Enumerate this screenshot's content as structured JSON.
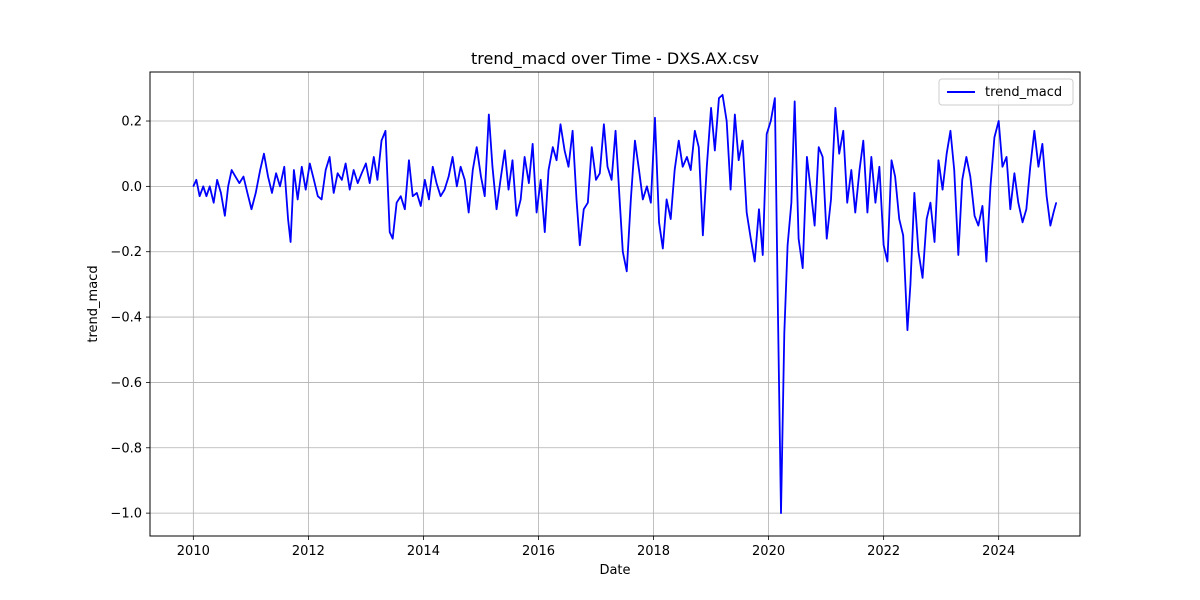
{
  "chart_data": {
    "type": "line",
    "title": "trend_macd over Time - DXS.AX.csv",
    "xlabel": "Date",
    "ylabel": "trend_macd",
    "x_ticks": [
      "2010",
      "2012",
      "2014",
      "2016",
      "2018",
      "2020",
      "2022",
      "2024"
    ],
    "y_ticks": [
      "0.2",
      "0.0",
      "−0.2",
      "−0.4",
      "−0.6",
      "−0.8",
      "−1.0"
    ],
    "xlim": [
      "2009-04-01",
      "2025-06-01"
    ],
    "ylim": [
      -1.07,
      0.35
    ],
    "grid": true,
    "legend_position": "top-right",
    "series": [
      {
        "name": "trend_macd",
        "color": "#0000ff",
        "points": [
          [
            "2010-01-01",
            0.0
          ],
          [
            "2010-01-20",
            0.02
          ],
          [
            "2010-02-10",
            -0.03
          ],
          [
            "2010-03-05",
            0.0
          ],
          [
            "2010-03-25",
            -0.03
          ],
          [
            "2010-04-15",
            0.0
          ],
          [
            "2010-05-10",
            -0.05
          ],
          [
            "2010-06-01",
            0.02
          ],
          [
            "2010-06-25",
            -0.02
          ],
          [
            "2010-07-20",
            -0.09
          ],
          [
            "2010-08-10",
            0.0
          ],
          [
            "2010-09-01",
            0.05
          ],
          [
            "2010-09-25",
            0.03
          ],
          [
            "2010-10-20",
            0.01
          ],
          [
            "2010-11-15",
            0.03
          ],
          [
            "2010-12-10",
            -0.02
          ],
          [
            "2011-01-05",
            -0.07
          ],
          [
            "2011-02-01",
            -0.02
          ],
          [
            "2011-03-01",
            0.05
          ],
          [
            "2011-03-25",
            0.1
          ],
          [
            "2011-04-20",
            0.03
          ],
          [
            "2011-05-15",
            -0.02
          ],
          [
            "2011-06-10",
            0.04
          ],
          [
            "2011-07-05",
            0.0
          ],
          [
            "2011-08-01",
            0.06
          ],
          [
            "2011-08-25",
            -0.1
          ],
          [
            "2011-09-10",
            -0.17
          ],
          [
            "2011-10-01",
            0.05
          ],
          [
            "2011-10-25",
            -0.04
          ],
          [
            "2011-11-20",
            0.06
          ],
          [
            "2011-12-15",
            -0.01
          ],
          [
            "2012-01-10",
            0.07
          ],
          [
            "2012-02-05",
            0.02
          ],
          [
            "2012-03-01",
            -0.03
          ],
          [
            "2012-03-25",
            -0.04
          ],
          [
            "2012-04-20",
            0.05
          ],
          [
            "2012-05-15",
            0.09
          ],
          [
            "2012-06-10",
            -0.02
          ],
          [
            "2012-07-05",
            0.04
          ],
          [
            "2012-08-01",
            0.02
          ],
          [
            "2012-08-25",
            0.07
          ],
          [
            "2012-09-20",
            -0.01
          ],
          [
            "2012-10-15",
            0.05
          ],
          [
            "2012-11-10",
            0.01
          ],
          [
            "2012-12-05",
            0.04
          ],
          [
            "2013-01-01",
            0.07
          ],
          [
            "2013-01-25",
            0.01
          ],
          [
            "2013-02-20",
            0.09
          ],
          [
            "2013-03-15",
            0.02
          ],
          [
            "2013-04-10",
            0.14
          ],
          [
            "2013-05-05",
            0.17
          ],
          [
            "2013-06-01",
            -0.14
          ],
          [
            "2013-06-20",
            -0.16
          ],
          [
            "2013-07-15",
            -0.05
          ],
          [
            "2013-08-10",
            -0.03
          ],
          [
            "2013-09-05",
            -0.07
          ],
          [
            "2013-10-01",
            0.08
          ],
          [
            "2013-10-25",
            -0.03
          ],
          [
            "2013-11-20",
            -0.02
          ],
          [
            "2013-12-15",
            -0.06
          ],
          [
            "2014-01-10",
            0.02
          ],
          [
            "2014-02-05",
            -0.04
          ],
          [
            "2014-03-01",
            0.06
          ],
          [
            "2014-03-25",
            0.01
          ],
          [
            "2014-04-20",
            -0.03
          ],
          [
            "2014-05-15",
            -0.01
          ],
          [
            "2014-06-10",
            0.03
          ],
          [
            "2014-07-05",
            0.09
          ],
          [
            "2014-08-01",
            0.0
          ],
          [
            "2014-08-25",
            0.06
          ],
          [
            "2014-09-20",
            0.02
          ],
          [
            "2014-10-15",
            -0.08
          ],
          [
            "2014-11-10",
            0.05
          ],
          [
            "2014-12-05",
            0.12
          ],
          [
            "2015-01-01",
            0.03
          ],
          [
            "2015-01-25",
            -0.03
          ],
          [
            "2015-02-20",
            0.22
          ],
          [
            "2015-03-15",
            0.06
          ],
          [
            "2015-04-10",
            -0.07
          ],
          [
            "2015-05-05",
            0.02
          ],
          [
            "2015-06-01",
            0.11
          ],
          [
            "2015-06-25",
            -0.01
          ],
          [
            "2015-07-20",
            0.08
          ],
          [
            "2015-08-15",
            -0.09
          ],
          [
            "2015-09-10",
            -0.04
          ],
          [
            "2015-10-05",
            0.09
          ],
          [
            "2015-11-01",
            0.01
          ],
          [
            "2015-11-25",
            0.13
          ],
          [
            "2015-12-20",
            -0.08
          ],
          [
            "2016-01-15",
            0.02
          ],
          [
            "2016-02-10",
            -0.14
          ],
          [
            "2016-03-05",
            0.05
          ],
          [
            "2016-04-01",
            0.12
          ],
          [
            "2016-04-25",
            0.08
          ],
          [
            "2016-05-20",
            0.19
          ],
          [
            "2016-06-15",
            0.11
          ],
          [
            "2016-07-10",
            0.06
          ],
          [
            "2016-08-05",
            0.17
          ],
          [
            "2016-08-30",
            -0.04
          ],
          [
            "2016-09-20",
            -0.18
          ],
          [
            "2016-10-15",
            -0.07
          ],
          [
            "2016-11-10",
            -0.05
          ],
          [
            "2016-12-05",
            0.12
          ],
          [
            "2017-01-01",
            0.02
          ],
          [
            "2017-01-25",
            0.04
          ],
          [
            "2017-02-20",
            0.19
          ],
          [
            "2017-03-15",
            0.06
          ],
          [
            "2017-04-10",
            0.02
          ],
          [
            "2017-05-05",
            0.17
          ],
          [
            "2017-06-01",
            -0.05
          ],
          [
            "2017-06-20",
            -0.2
          ],
          [
            "2017-07-15",
            -0.26
          ],
          [
            "2017-08-10",
            -0.04
          ],
          [
            "2017-09-05",
            0.14
          ],
          [
            "2017-10-01",
            0.05
          ],
          [
            "2017-10-25",
            -0.04
          ],
          [
            "2017-11-20",
            0.0
          ],
          [
            "2017-12-15",
            -0.05
          ],
          [
            "2018-01-10",
            0.21
          ],
          [
            "2018-02-05",
            -0.11
          ],
          [
            "2018-03-01",
            -0.19
          ],
          [
            "2018-03-25",
            -0.04
          ],
          [
            "2018-04-20",
            -0.1
          ],
          [
            "2018-05-15",
            0.05
          ],
          [
            "2018-06-10",
            0.14
          ],
          [
            "2018-07-05",
            0.06
          ],
          [
            "2018-08-01",
            0.09
          ],
          [
            "2018-08-25",
            0.05
          ],
          [
            "2018-09-20",
            0.17
          ],
          [
            "2018-10-15",
            0.12
          ],
          [
            "2018-11-10",
            -0.15
          ],
          [
            "2018-12-05",
            0.06
          ],
          [
            "2019-01-01",
            0.24
          ],
          [
            "2019-01-25",
            0.11
          ],
          [
            "2019-02-20",
            0.27
          ],
          [
            "2019-03-15",
            0.28
          ],
          [
            "2019-04-10",
            0.2
          ],
          [
            "2019-05-05",
            -0.01
          ],
          [
            "2019-06-01",
            0.22
          ],
          [
            "2019-06-25",
            0.08
          ],
          [
            "2019-07-20",
            0.14
          ],
          [
            "2019-08-15",
            -0.08
          ],
          [
            "2019-09-10",
            -0.16
          ],
          [
            "2019-10-05",
            -0.23
          ],
          [
            "2019-11-01",
            -0.07
          ],
          [
            "2019-11-25",
            -0.21
          ],
          [
            "2019-12-20",
            0.16
          ],
          [
            "2020-01-15",
            0.2
          ],
          [
            "2020-02-10",
            0.27
          ],
          [
            "2020-03-01",
            -0.4
          ],
          [
            "2020-03-20",
            -1.0
          ],
          [
            "2020-04-10",
            -0.45
          ],
          [
            "2020-05-01",
            -0.18
          ],
          [
            "2020-05-25",
            -0.05
          ],
          [
            "2020-06-15",
            0.26
          ],
          [
            "2020-07-10",
            -0.16
          ],
          [
            "2020-08-05",
            -0.25
          ],
          [
            "2020-09-01",
            0.09
          ],
          [
            "2020-09-25",
            -0.01
          ],
          [
            "2020-10-20",
            -0.12
          ],
          [
            "2020-11-15",
            0.12
          ],
          [
            "2020-12-10",
            0.09
          ],
          [
            "2021-01-05",
            -0.16
          ],
          [
            "2021-02-01",
            -0.04
          ],
          [
            "2021-03-01",
            0.24
          ],
          [
            "2021-03-25",
            0.1
          ],
          [
            "2021-04-20",
            0.17
          ],
          [
            "2021-05-15",
            -0.05
          ],
          [
            "2021-06-10",
            0.05
          ],
          [
            "2021-07-05",
            -0.08
          ],
          [
            "2021-08-01",
            0.05
          ],
          [
            "2021-08-25",
            0.14
          ],
          [
            "2021-09-20",
            -0.08
          ],
          [
            "2021-10-15",
            0.09
          ],
          [
            "2021-11-10",
            -0.05
          ],
          [
            "2021-12-05",
            0.06
          ],
          [
            "2022-01-01",
            -0.18
          ],
          [
            "2022-01-25",
            -0.23
          ],
          [
            "2022-02-20",
            0.08
          ],
          [
            "2022-03-15",
            0.03
          ],
          [
            "2022-04-10",
            -0.1
          ],
          [
            "2022-05-05",
            -0.15
          ],
          [
            "2022-06-01",
            -0.44
          ],
          [
            "2022-06-20",
            -0.3
          ],
          [
            "2022-07-15",
            -0.02
          ],
          [
            "2022-08-10",
            -0.2
          ],
          [
            "2022-09-05",
            -0.28
          ],
          [
            "2022-10-01",
            -0.1
          ],
          [
            "2022-10-25",
            -0.05
          ],
          [
            "2022-11-20",
            -0.17
          ],
          [
            "2022-12-15",
            0.08
          ],
          [
            "2023-01-10",
            -0.01
          ],
          [
            "2023-02-05",
            0.1
          ],
          [
            "2023-03-01",
            0.17
          ],
          [
            "2023-03-25",
            0.05
          ],
          [
            "2023-04-20",
            -0.21
          ],
          [
            "2023-05-15",
            0.02
          ],
          [
            "2023-06-10",
            0.09
          ],
          [
            "2023-07-05",
            0.03
          ],
          [
            "2023-08-01",
            -0.09
          ],
          [
            "2023-08-25",
            -0.12
          ],
          [
            "2023-09-20",
            -0.06
          ],
          [
            "2023-10-15",
            -0.23
          ],
          [
            "2023-11-10",
            0.0
          ],
          [
            "2023-12-05",
            0.15
          ],
          [
            "2024-01-01",
            0.2
          ],
          [
            "2024-01-25",
            0.06
          ],
          [
            "2024-02-20",
            0.09
          ],
          [
            "2024-03-15",
            -0.07
          ],
          [
            "2024-04-10",
            0.04
          ],
          [
            "2024-05-05",
            -0.05
          ],
          [
            "2024-06-01",
            -0.11
          ],
          [
            "2024-06-25",
            -0.07
          ],
          [
            "2024-07-20",
            0.06
          ],
          [
            "2024-08-15",
            0.17
          ],
          [
            "2024-09-10",
            0.06
          ],
          [
            "2024-10-05",
            0.13
          ],
          [
            "2024-11-01",
            -0.03
          ],
          [
            "2024-11-25",
            -0.12
          ],
          [
            "2024-12-15",
            -0.08
          ],
          [
            "2025-01-01",
            -0.05
          ]
        ]
      }
    ]
  }
}
